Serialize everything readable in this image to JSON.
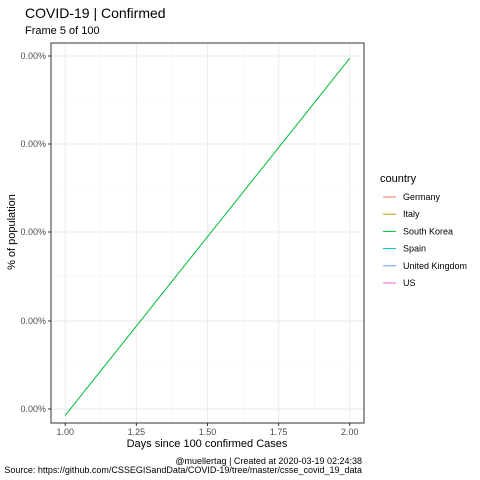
{
  "chart_data": {
    "type": "line",
    "title": "COVID-19 | Confirmed",
    "subtitle": "Frame 5 of 100",
    "xlabel": "Days since 100 confirmed Cases",
    "ylabel": "% of population",
    "x_ticks": [
      1.0,
      1.25,
      1.5,
      1.75,
      2.0
    ],
    "x_tick_labels": [
      "1.00",
      "1.25",
      "1.50",
      "1.75",
      "2.00"
    ],
    "y_tick_labels": [
      "0.00%",
      "0.00%",
      "0.00%",
      "0.00%",
      "0.00%"
    ],
    "xlim": [
      0.95,
      2.05
    ],
    "ylim": [
      0,
      1
    ],
    "grid": true,
    "legend": {
      "title": "country",
      "position": "right",
      "entries": [
        {
          "name": "Germany",
          "color": "#F8766D"
        },
        {
          "name": "Italy",
          "color": "#B79F00"
        },
        {
          "name": "South Korea",
          "color": "#00BA38"
        },
        {
          "name": "Spain",
          "color": "#00BFC4"
        },
        {
          "name": "United Kingdom",
          "color": "#619CFF"
        },
        {
          "name": "US",
          "color": "#F564E3"
        }
      ]
    },
    "series": [
      {
        "name": "South Korea",
        "color": "#00BA38",
        "x": [
          1.0,
          2.0
        ],
        "y": [
          0.02,
          0.96
        ]
      }
    ],
    "caption": {
      "line1": "@muellertag | Created at  2020-03-19 02:24:38",
      "line2": "Source: https://github.com/CSSEGISandData/COVID-19/tree/master/csse_covid_19_data"
    }
  }
}
